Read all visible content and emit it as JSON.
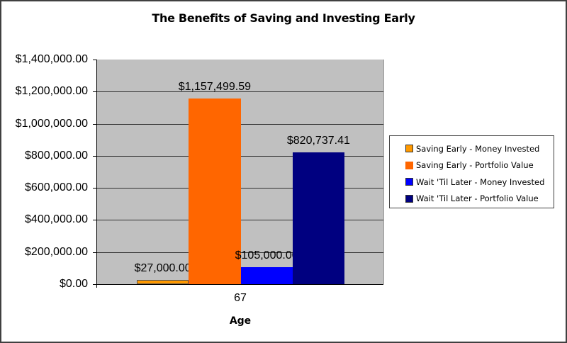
{
  "chart_data": {
    "type": "bar",
    "title": "The Benefits of Saving and Investing Early",
    "xlabel": "Age",
    "ylabel": "",
    "categories": [
      "67"
    ],
    "series": [
      {
        "name": "Saving Early - Money Invested",
        "values": [
          27000.0
        ],
        "label": "$27,000.00",
        "color": "#FF9900"
      },
      {
        "name": "Saving Early - Portfolio Value",
        "values": [
          1157499.59
        ],
        "label": "$1,157,499.59",
        "color": "#FF6600"
      },
      {
        "name": "Wait 'Til Later - Money Invested",
        "values": [
          105000.0
        ],
        "label": "$105,000.00",
        "color": "#0000FF"
      },
      {
        "name": "Wait 'Til Later - Portfolio Value",
        "values": [
          820737.41
        ],
        "label": "$820,737.41",
        "color": "#000080"
      }
    ],
    "ylim": [
      0,
      1400000
    ],
    "yticks": [
      0,
      200000,
      400000,
      600000,
      800000,
      1000000,
      1200000,
      1400000
    ],
    "ytick_labels": [
      "$0.00",
      "$200,000.00",
      "$400,000.00",
      "$600,000.00",
      "$800,000.00",
      "$1,000,000.00",
      "$1,200,000.00",
      "$1,400,000.00"
    ],
    "grid": true,
    "legend_position": "right",
    "plot_background": "#C0C0C0"
  }
}
